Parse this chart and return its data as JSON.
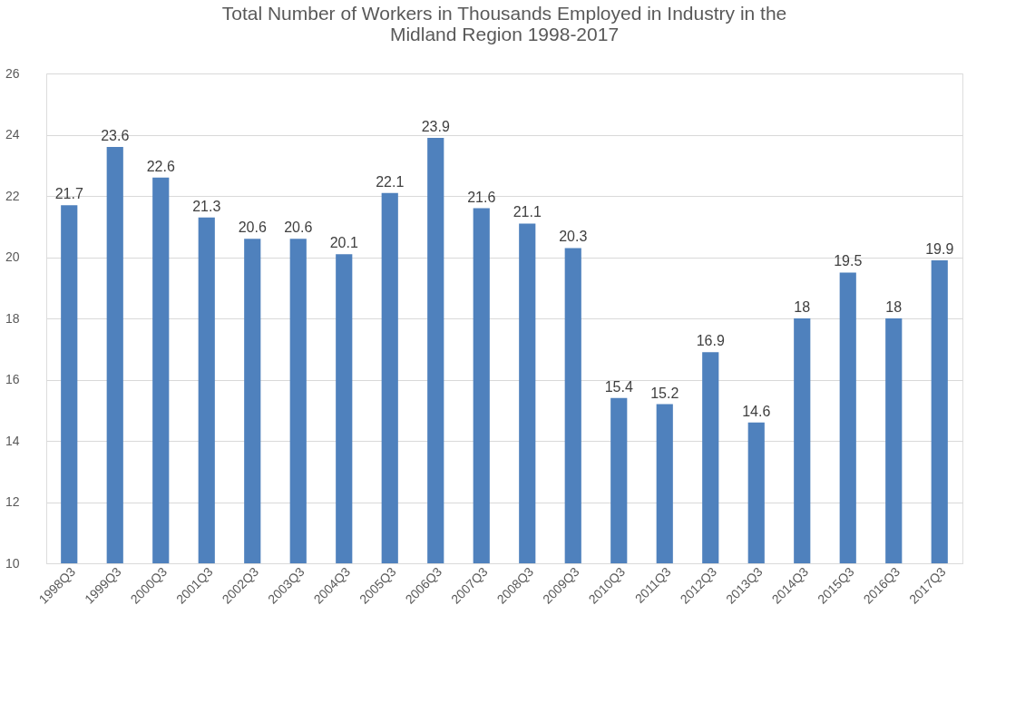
{
  "chart_data": {
    "type": "bar",
    "title": "Total Number of Workers in Thousands Employed in Industry in the Midland Region 1998-2017",
    "categories": [
      "1998Q3",
      "1999Q3",
      "2000Q3",
      "2001Q3",
      "2002Q3",
      "2003Q3",
      "2004Q3",
      "2005Q3",
      "2006Q3",
      "2007Q3",
      "2008Q3",
      "2009Q3",
      "2010Q3",
      "2011Q3",
      "2012Q3",
      "2013Q3",
      "2014Q3",
      "2015Q3",
      "2016Q3",
      "2017Q3"
    ],
    "values": [
      21.7,
      23.6,
      22.6,
      21.3,
      20.6,
      20.6,
      20.1,
      22.1,
      23.9,
      21.6,
      21.1,
      20.3,
      15.4,
      15.2,
      16.9,
      14.6,
      18,
      19.5,
      18,
      19.9
    ],
    "color": "#4f81bd",
    "ylim": [
      10,
      26
    ],
    "yticks": [
      10,
      12,
      14,
      16,
      18,
      20,
      22,
      24,
      26
    ],
    "grid": "y",
    "data_labels": true
  }
}
